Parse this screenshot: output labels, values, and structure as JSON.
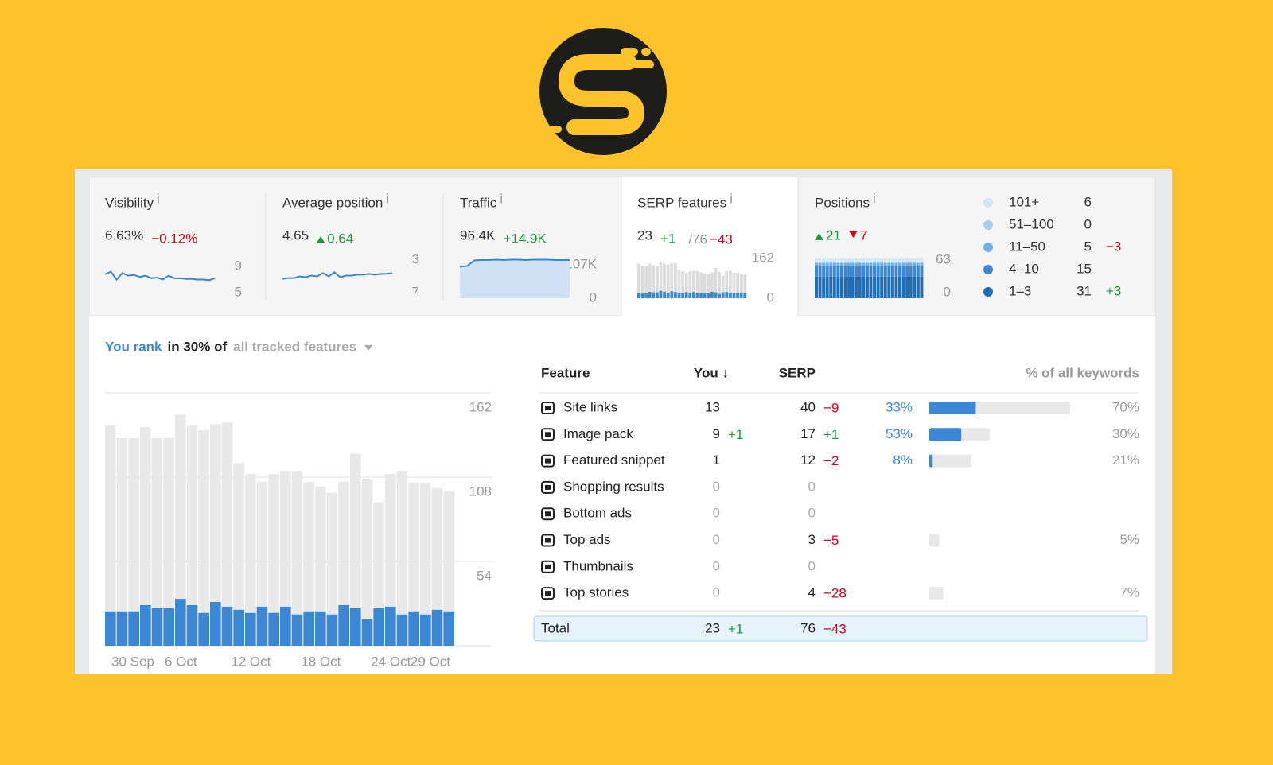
{
  "cards": [
    {
      "title": "Visibility",
      "info": "i",
      "value": "6.63%",
      "change": "−0.12%",
      "direction": "down",
      "axis": [
        9,
        5
      ],
      "spark": [
        7.8,
        8.2,
        7.0,
        8.0,
        7.6,
        7.7,
        7.4,
        7.6,
        7.2,
        7.3,
        7.0,
        7.6,
        7.2,
        7.2,
        7.1,
        7.1,
        7.0,
        7.0,
        6.9,
        7.2
      ]
    },
    {
      "title": "Average position",
      "info": "i",
      "value": "4.65",
      "change": "0.64",
      "direction": "up",
      "axis": [
        3,
        7
      ],
      "spark": [
        5.3,
        5.2,
        5.2,
        5.0,
        5.1,
        4.9,
        5.0,
        4.6,
        5.0,
        4.5,
        5.1,
        4.9,
        4.9,
        4.8,
        4.8,
        4.7,
        4.8,
        4.7,
        4.7,
        4.6
      ]
    },
    {
      "title": "Traffic",
      "info": "i",
      "value": "96.4K",
      "change": "+14.9K",
      "direction": "up",
      "axis": [
        {
          "value": 107000,
          "label": "107K"
        },
        0
      ],
      "spark": [
        80000,
        82000,
        96000,
        97000,
        97000,
        98000,
        97000,
        98000,
        98000,
        97000,
        98000,
        98000,
        98000,
        97000,
        97000,
        97000
      ]
    },
    {
      "title": "SERP features",
      "info": "i",
      "value": "23",
      "change": "+1",
      "direction": "up",
      "total": "/76",
      "total_change": "−43",
      "axis": [
        162,
        0
      ]
    }
  ],
  "positions": {
    "title": "Positions",
    "info": "i",
    "up": "21",
    "down": "7",
    "axis": [
      63,
      0
    ],
    "legend": [
      {
        "label": "101+",
        "count": 6
      },
      {
        "label": "51–100",
        "count": 0
      },
      {
        "label": "11–50",
        "count": 5,
        "change": "−3"
      },
      {
        "label": "4–10",
        "count": 15
      },
      {
        "label": "1–3",
        "count": 31,
        "change": "+3"
      }
    ]
  },
  "headline": {
    "you_rank": "You rank",
    "middle": "in 30% of",
    "selector": "all tracked features"
  },
  "table": {
    "headers": [
      "Feature",
      "You ↓",
      "SERP",
      "% of all keywords"
    ],
    "rows": [
      {
        "name": "Site links",
        "you": 13,
        "serp": 40,
        "serp_change": "−9",
        "pct": {
          "value": 33,
          "label": "33%"
        },
        "share": {
          "value": 70,
          "label": "70%"
        }
      },
      {
        "name": "Image pack",
        "you": 9,
        "you_change": "+1",
        "serp": 17,
        "serp_change": "+1",
        "pct": {
          "value": 53,
          "label": "53%"
        },
        "share": {
          "value": 30,
          "label": "30%"
        }
      },
      {
        "name": "Featured snippet",
        "you": 1,
        "serp": 12,
        "serp_change": "−2",
        "pct": {
          "value": 8,
          "label": "8%"
        },
        "share": {
          "value": 21,
          "label": "21%"
        }
      },
      {
        "name": "Shopping results",
        "you": 0,
        "serp": 0
      },
      {
        "name": "Bottom ads",
        "you": 0,
        "serp": 0
      },
      {
        "name": "Top ads",
        "you": 0,
        "serp": 3,
        "serp_change": "−5",
        "share": {
          "value": 5,
          "label": "5%"
        }
      },
      {
        "name": "Thumbnails",
        "you": 0,
        "serp": 0
      },
      {
        "name": "Top stories",
        "you": 0,
        "serp": 4,
        "serp_change": "−28",
        "share": {
          "value": 7,
          "label": "7%"
        }
      }
    ],
    "total": {
      "name": "Total",
      "you": 23,
      "you_change": "+1",
      "serp": 76,
      "serp_change": "−43"
    }
  },
  "chart": {
    "ylim": [
      0,
      162
    ],
    "yticks": [
      54,
      108,
      162
    ],
    "dates": [
      "30 Sep",
      null,
      null,
      null,
      null,
      null,
      "6 Oct",
      null,
      null,
      null,
      null,
      null,
      "12 Oct",
      null,
      null,
      null,
      null,
      null,
      "18 Oct",
      null,
      null,
      null,
      null,
      null,
      "24 Oct",
      null,
      null,
      null,
      null,
      "29 Oct"
    ],
    "total": [
      141,
      133,
      133,
      140,
      133,
      133,
      148,
      141,
      138,
      142,
      143,
      117,
      110,
      105,
      110,
      112,
      112,
      105,
      102,
      98,
      105,
      123,
      107,
      92,
      110,
      112,
      104,
      104,
      101,
      99
    ],
    "you": [
      22,
      22,
      22,
      26,
      24,
      24,
      30,
      26,
      21,
      28,
      25,
      23,
      21,
      25,
      21,
      25,
      20,
      22,
      22,
      20,
      26,
      24,
      17,
      24,
      25,
      20,
      22,
      20,
      23,
      22
    ]
  }
}
